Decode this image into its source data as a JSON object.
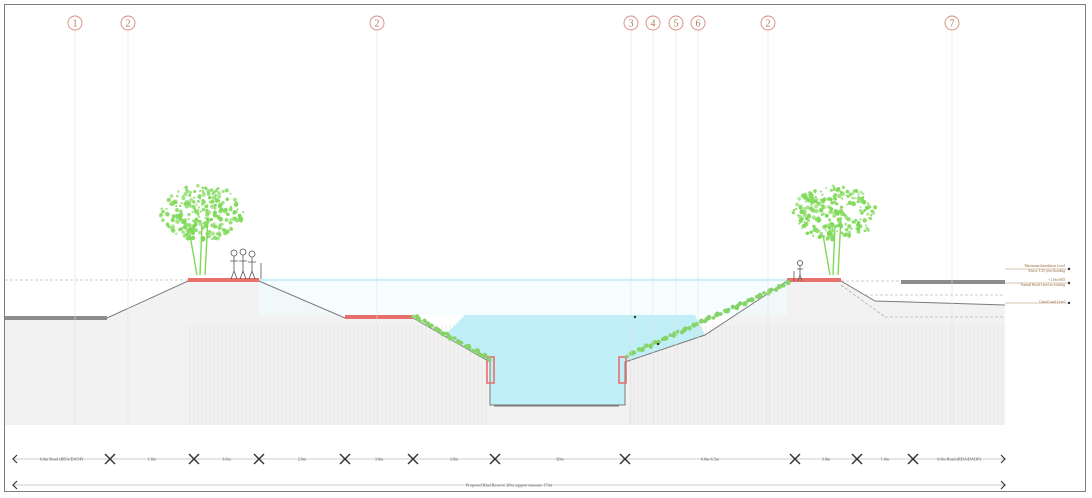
{
  "markers": [
    "1",
    "2",
    "2",
    "3",
    "4",
    "5",
    "6",
    "2",
    "7"
  ],
  "level_notes": [
    "Maximum Inundation Level",
    "Above 1:25 year flooding",
    "+1.0m SSD",
    "Natural Road Level as existing",
    "Canal Land Level"
  ],
  "dimensions": {
    "row1": [
      "6.0m Road (RDA/DAOP)",
      "1.0m",
      "3.0m",
      "2.0m",
      "3.0m",
      "3.0m",
      "20m",
      "6.0m-6.5m",
      "3.0m",
      "1.0m",
      "6.0m Road (RDA/DAOP)"
    ],
    "row2": [
      "Proposed Khal Reserve 20m support measure 17mt"
    ]
  },
  "colors": {
    "water": "#bdeef7",
    "ground": "#f2f2f2",
    "paving": "#e8706a",
    "road": "#8c8c8c",
    "vegetation": "#7ed957",
    "marker": "#d98a7c"
  }
}
